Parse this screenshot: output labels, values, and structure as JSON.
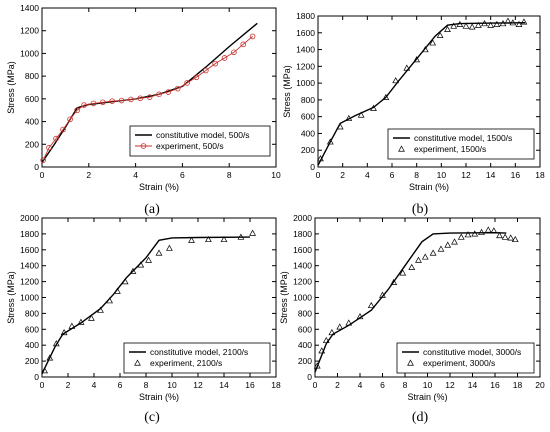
{
  "chart_data": [
    {
      "type": "line",
      "panel_label": "(a)",
      "xlabel": "Strain (%)",
      "ylabel": "Stress (MPa)",
      "xlim": [
        0,
        10
      ],
      "ylim": [
        0,
        1400
      ],
      "x_ticks": [
        "0",
        "2",
        "4",
        "6",
        "8",
        "10"
      ],
      "y_ticks": [
        "0",
        "200",
        "400",
        "600",
        "800",
        "1000",
        "1200",
        "1400"
      ],
      "legend_position": "lower-right",
      "series": [
        {
          "name": "constitutive model, 500/s",
          "style": "line",
          "color": "#000000",
          "points": [
            [
              0,
              40
            ],
            [
              0.5,
              190
            ],
            [
              1.0,
              350
            ],
            [
              1.5,
              520
            ],
            [
              2,
              550
            ],
            [
              3,
              575
            ],
            [
              4,
              600
            ],
            [
              5,
              640
            ],
            [
              6,
              710
            ],
            [
              7,
              880
            ],
            [
              8,
              1060
            ],
            [
              9.2,
              1265
            ]
          ]
        },
        {
          "name": "experiment, 500/s",
          "style": "line-circles",
          "color": "#c8302a",
          "points": [
            [
              0.05,
              60
            ],
            [
              0.3,
              170
            ],
            [
              0.6,
              250
            ],
            [
              0.9,
              330
            ],
            [
              1.2,
              420
            ],
            [
              1.5,
              500
            ],
            [
              1.8,
              545
            ],
            [
              2.2,
              560
            ],
            [
              2.6,
              570
            ],
            [
              3.0,
              580
            ],
            [
              3.4,
              585
            ],
            [
              3.8,
              595
            ],
            [
              4.2,
              605
            ],
            [
              4.6,
              615
            ],
            [
              5.0,
              640
            ],
            [
              5.4,
              660
            ],
            [
              5.8,
              690
            ],
            [
              6.2,
              740
            ],
            [
              6.6,
              790
            ],
            [
              7.0,
              850
            ],
            [
              7.4,
              910
            ],
            [
              7.8,
              960
            ],
            [
              8.2,
              1010
            ],
            [
              8.6,
              1080
            ],
            [
              9.0,
              1150
            ]
          ]
        }
      ]
    },
    {
      "type": "line",
      "panel_label": "(b)",
      "xlabel": "Strain (%)",
      "ylabel": "Stress (MPa)",
      "xlim": [
        0,
        18
      ],
      "ylim": [
        0,
        1800
      ],
      "x_ticks": [
        "0",
        "2",
        "4",
        "6",
        "8",
        "10",
        "12",
        "14",
        "16",
        "18"
      ],
      "y_ticks": [
        "0",
        "200",
        "400",
        "600",
        "800",
        "1000",
        "1200",
        "1400",
        "1600",
        "1800"
      ],
      "legend_position": "lower-right",
      "series": [
        {
          "name": "constitutive model, 1500/s",
          "style": "line",
          "color": "#000000",
          "points": [
            [
              0,
              20
            ],
            [
              1,
              300
            ],
            [
              1.8,
              520
            ],
            [
              3,
              610
            ],
            [
              4.5,
              710
            ],
            [
              5.5,
              830
            ],
            [
              6.5,
              1020
            ],
            [
              8,
              1290
            ],
            [
              9.5,
              1560
            ],
            [
              10.5,
              1690
            ],
            [
              11.5,
              1710
            ],
            [
              14,
              1715
            ],
            [
              16.8,
              1720
            ]
          ]
        },
        {
          "name": "experiment, 1500/s",
          "style": "triangles",
          "color": "#000000",
          "points": [
            [
              0.2,
              100
            ],
            [
              1.0,
              300
            ],
            [
              1.8,
              480
            ],
            [
              2.5,
              580
            ],
            [
              3.5,
              620
            ],
            [
              4.5,
              700
            ],
            [
              5.5,
              830
            ],
            [
              6.3,
              1030
            ],
            [
              7.2,
              1180
            ],
            [
              8.0,
              1280
            ],
            [
              8.7,
              1400
            ],
            [
              9.3,
              1480
            ],
            [
              9.9,
              1570
            ],
            [
              10.5,
              1640
            ],
            [
              11.0,
              1680
            ],
            [
              11.5,
              1700
            ],
            [
              12.0,
              1680
            ],
            [
              12.5,
              1670
            ],
            [
              13.0,
              1690
            ],
            [
              13.5,
              1710
            ],
            [
              14.0,
              1690
            ],
            [
              14.5,
              1700
            ],
            [
              15.0,
              1710
            ],
            [
              15.4,
              1740
            ],
            [
              15.8,
              1720
            ],
            [
              16.3,
              1700
            ],
            [
              16.7,
              1730
            ]
          ]
        }
      ]
    },
    {
      "type": "line",
      "panel_label": "(c)",
      "xlabel": "Strain (%)",
      "ylabel": "Stress (MPa)",
      "xlim": [
        0,
        18
      ],
      "ylim": [
        0,
        2000
      ],
      "x_ticks": [
        "0",
        "2",
        "4",
        "6",
        "8",
        "10",
        "12",
        "14",
        "16",
        "18"
      ],
      "y_ticks": [
        "0",
        "200",
        "400",
        "600",
        "800",
        "1000",
        "1200",
        "1400",
        "1600",
        "1800",
        "2000"
      ],
      "legend_position": "lower-right",
      "series": [
        {
          "name": "constitutive model, 2100/s",
          "style": "line",
          "color": "#000000",
          "points": [
            [
              0,
              40
            ],
            [
              1,
              380
            ],
            [
              1.6,
              540
            ],
            [
              3,
              680
            ],
            [
              4.5,
              860
            ],
            [
              5.5,
              1040
            ],
            [
              6.5,
              1250
            ],
            [
              8,
              1500
            ],
            [
              9,
              1720
            ],
            [
              10,
              1750
            ],
            [
              12,
              1755
            ],
            [
              16,
              1760
            ]
          ]
        },
        {
          "name": "experiment, 2100/s",
          "style": "triangles",
          "color": "#000000",
          "points": [
            [
              0.2,
              80
            ],
            [
              0.6,
              240
            ],
            [
              1.1,
              420
            ],
            [
              1.7,
              560
            ],
            [
              2.3,
              640
            ],
            [
              3.0,
              690
            ],
            [
              3.8,
              740
            ],
            [
              4.5,
              840
            ],
            [
              5.2,
              960
            ],
            [
              5.8,
              1080
            ],
            [
              6.4,
              1200
            ],
            [
              7.0,
              1330
            ],
            [
              7.6,
              1410
            ],
            [
              8.2,
              1470
            ],
            [
              9.0,
              1560
            ],
            [
              9.8,
              1620
            ],
            [
              11.5,
              1720
            ],
            [
              12.8,
              1730
            ],
            [
              14.0,
              1730
            ],
            [
              15.3,
              1760
            ],
            [
              16.2,
              1810
            ]
          ]
        }
      ]
    },
    {
      "type": "line",
      "panel_label": "(d)",
      "xlabel": "Strain (%)",
      "ylabel": "Stress (MPa)",
      "xlim": [
        0,
        20
      ],
      "ylim": [
        0,
        2000
      ],
      "x_ticks": [
        "0",
        "2",
        "4",
        "6",
        "8",
        "10",
        "12",
        "14",
        "16",
        "18",
        "20"
      ],
      "y_ticks": [
        "0",
        "200",
        "400",
        "600",
        "800",
        "1000",
        "1200",
        "1400",
        "1600",
        "1800",
        "2000"
      ],
      "legend_position": "lower-right",
      "series": [
        {
          "name": "constitutive model, 3000/s",
          "style": "line",
          "color": "#000000",
          "points": [
            [
              0,
              60
            ],
            [
              1,
              420
            ],
            [
              1.6,
              540
            ],
            [
              3,
              650
            ],
            [
              5,
              840
            ],
            [
              6.5,
              1100
            ],
            [
              8,
              1400
            ],
            [
              9.5,
              1700
            ],
            [
              10.5,
              1800
            ],
            [
              12,
              1810
            ],
            [
              16,
              1815
            ],
            [
              17,
              1810
            ]
          ]
        },
        {
          "name": "experiment, 3000/s",
          "style": "triangles",
          "color": "#000000",
          "points": [
            [
              0.2,
              140
            ],
            [
              0.6,
              330
            ],
            [
              1.0,
              460
            ],
            [
              1.5,
              560
            ],
            [
              2.2,
              630
            ],
            [
              3.0,
              680
            ],
            [
              4.0,
              760
            ],
            [
              5.0,
              900
            ],
            [
              6.0,
              1030
            ],
            [
              7.0,
              1190
            ],
            [
              7.8,
              1310
            ],
            [
              8.6,
              1380
            ],
            [
              9.2,
              1470
            ],
            [
              9.8,
              1510
            ],
            [
              10.5,
              1560
            ],
            [
              11.2,
              1610
            ],
            [
              11.8,
              1660
            ],
            [
              12.4,
              1700
            ],
            [
              13.0,
              1760
            ],
            [
              13.6,
              1790
            ],
            [
              14.2,
              1800
            ],
            [
              14.8,
              1820
            ],
            [
              15.4,
              1850
            ],
            [
              15.9,
              1840
            ],
            [
              16.4,
              1780
            ],
            [
              16.9,
              1760
            ],
            [
              17.4,
              1750
            ],
            [
              17.8,
              1730
            ]
          ]
        }
      ]
    }
  ]
}
